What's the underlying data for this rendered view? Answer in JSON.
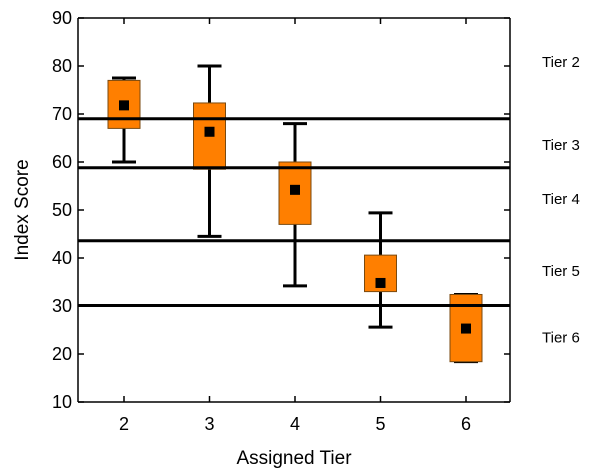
{
  "chart_data": {
    "type": "box",
    "xlabel": "Assigned Tier",
    "ylabel": "Index Score",
    "ylim": [
      10,
      90
    ],
    "yticks": [
      10,
      20,
      30,
      40,
      50,
      60,
      70,
      80,
      90
    ],
    "categories": [
      "2",
      "3",
      "4",
      "5",
      "6"
    ],
    "boxes": [
      {
        "category": "2",
        "whisker_low": 60,
        "q1": 67,
        "mean": 71.8,
        "q3": 77,
        "whisker_high": 77.5
      },
      {
        "category": "3",
        "whisker_low": 44.5,
        "q1": 58.5,
        "mean": 66.3,
        "q3": 72.3,
        "whisker_high": 80
      },
      {
        "category": "4",
        "whisker_low": 34.2,
        "q1": 47,
        "mean": 54.2,
        "q3": 60,
        "whisker_high": 68
      },
      {
        "category": "5",
        "whisker_low": 25.6,
        "q1": 33,
        "mean": 34.8,
        "q3": 40.6,
        "whisker_high": 49.4
      },
      {
        "category": "6",
        "whisker_low": 18.4,
        "q1": 18.4,
        "mean": 25.3,
        "q3": 32.4,
        "whisker_high": 32.4
      }
    ],
    "thresholds": [
      69,
      58.8,
      43.6,
      30.1
    ],
    "tier_labels": [
      {
        "label": "Tier 2",
        "y": 80.8
      },
      {
        "label": "Tier 3",
        "y": 63.5
      },
      {
        "label": "Tier 4",
        "y": 52.3
      },
      {
        "label": "Tier 5",
        "y": 37.3
      },
      {
        "label": "Tier 6",
        "y": 23.4
      }
    ],
    "colors": {
      "box_fill": "#ff7f00",
      "box_stroke": "#7a4a10",
      "line": "#000000",
      "mean_marker": "#000000"
    },
    "grid": false
  }
}
